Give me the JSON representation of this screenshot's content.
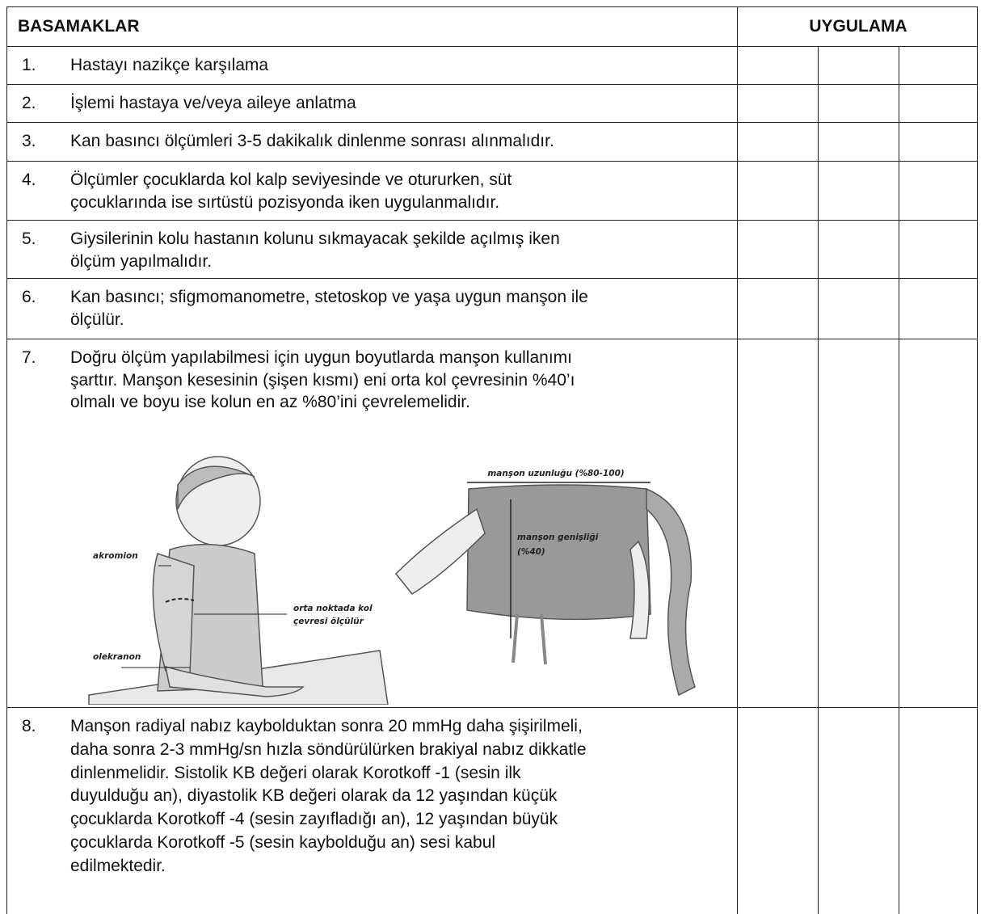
{
  "table": {
    "headers": {
      "steps": "BASAMAKLAR",
      "application": "UYGULAMA"
    },
    "rows": [
      {
        "number": "1.",
        "lines": [
          "Hastayı nazikçe karşılama"
        ]
      },
      {
        "number": "2.",
        "lines": [
          "İşlemi hastaya ve/veya aileye anlatma"
        ]
      },
      {
        "number": "3.",
        "lines": [
          "Kan basıncı ölçümleri 3-5 dakikalık dinlenme sonrası alınmalıdır."
        ]
      },
      {
        "number": "4.",
        "lines": [
          "Ölçümler çocuklarda kol kalp seviyesinde ve otururken, süt",
          "çocuklarında ise sırtüstü pozisyonda iken uygulanmalıdır."
        ]
      },
      {
        "number": "5.",
        "lines": [
          "Giysilerinin kolu hastanın kolunu sıkmayacak şekilde açılmış iken",
          "ölçüm yapılmalıdır."
        ]
      },
      {
        "number": "6.",
        "lines": [
          "Kan basıncı; sfigmomanometre, stetoskop ve yaşa uygun manşon ile",
          "ölçülür."
        ]
      },
      {
        "number": "7.",
        "lines": [
          "Doğru ölçüm yapılabilmesi için uygun boyutlarda manşon kullanımı",
          "şarttır. Manşon kesesinin (şişen kısmı) eni orta kol çevresinin %40’ı",
          "olmalı ve boyu ise kolun en az %80’ini çevrelemelidir."
        ]
      },
      {
        "number": "8.",
        "lines": [
          "Manşon radiyal nabız kaybolduktan sonra 20 mmHg daha şişirilmeli,",
          "daha sonra 2-3 mmHg/sn hızla söndürülürken brakiyal nabız dikkatle",
          "dinlenmelidir. Sistolik KB değeri olarak Korotkoff -1 (sesin ilk",
          "duyulduğu an), diyastolik KB değeri olarak da 12 yaşından küçük",
          "çocuklarda Korotkoff -4 (sesin zayıfladığı an), 12 yaşından büyük",
          "çocuklarda Korotkoff -5 (sesin kaybolduğu an) sesi kabul",
          "edilmektedir."
        ]
      }
    ]
  },
  "figure": {
    "akromion": "akromion",
    "midpoint": [
      "orta noktada kol",
      "çevresi ölçülür"
    ],
    "olekranon": "olekranon",
    "cuff_length": "manşon uzunluğu (%80-100)",
    "cuff_width": [
      "manşon genişliği",
      "(%40)"
    ]
  }
}
